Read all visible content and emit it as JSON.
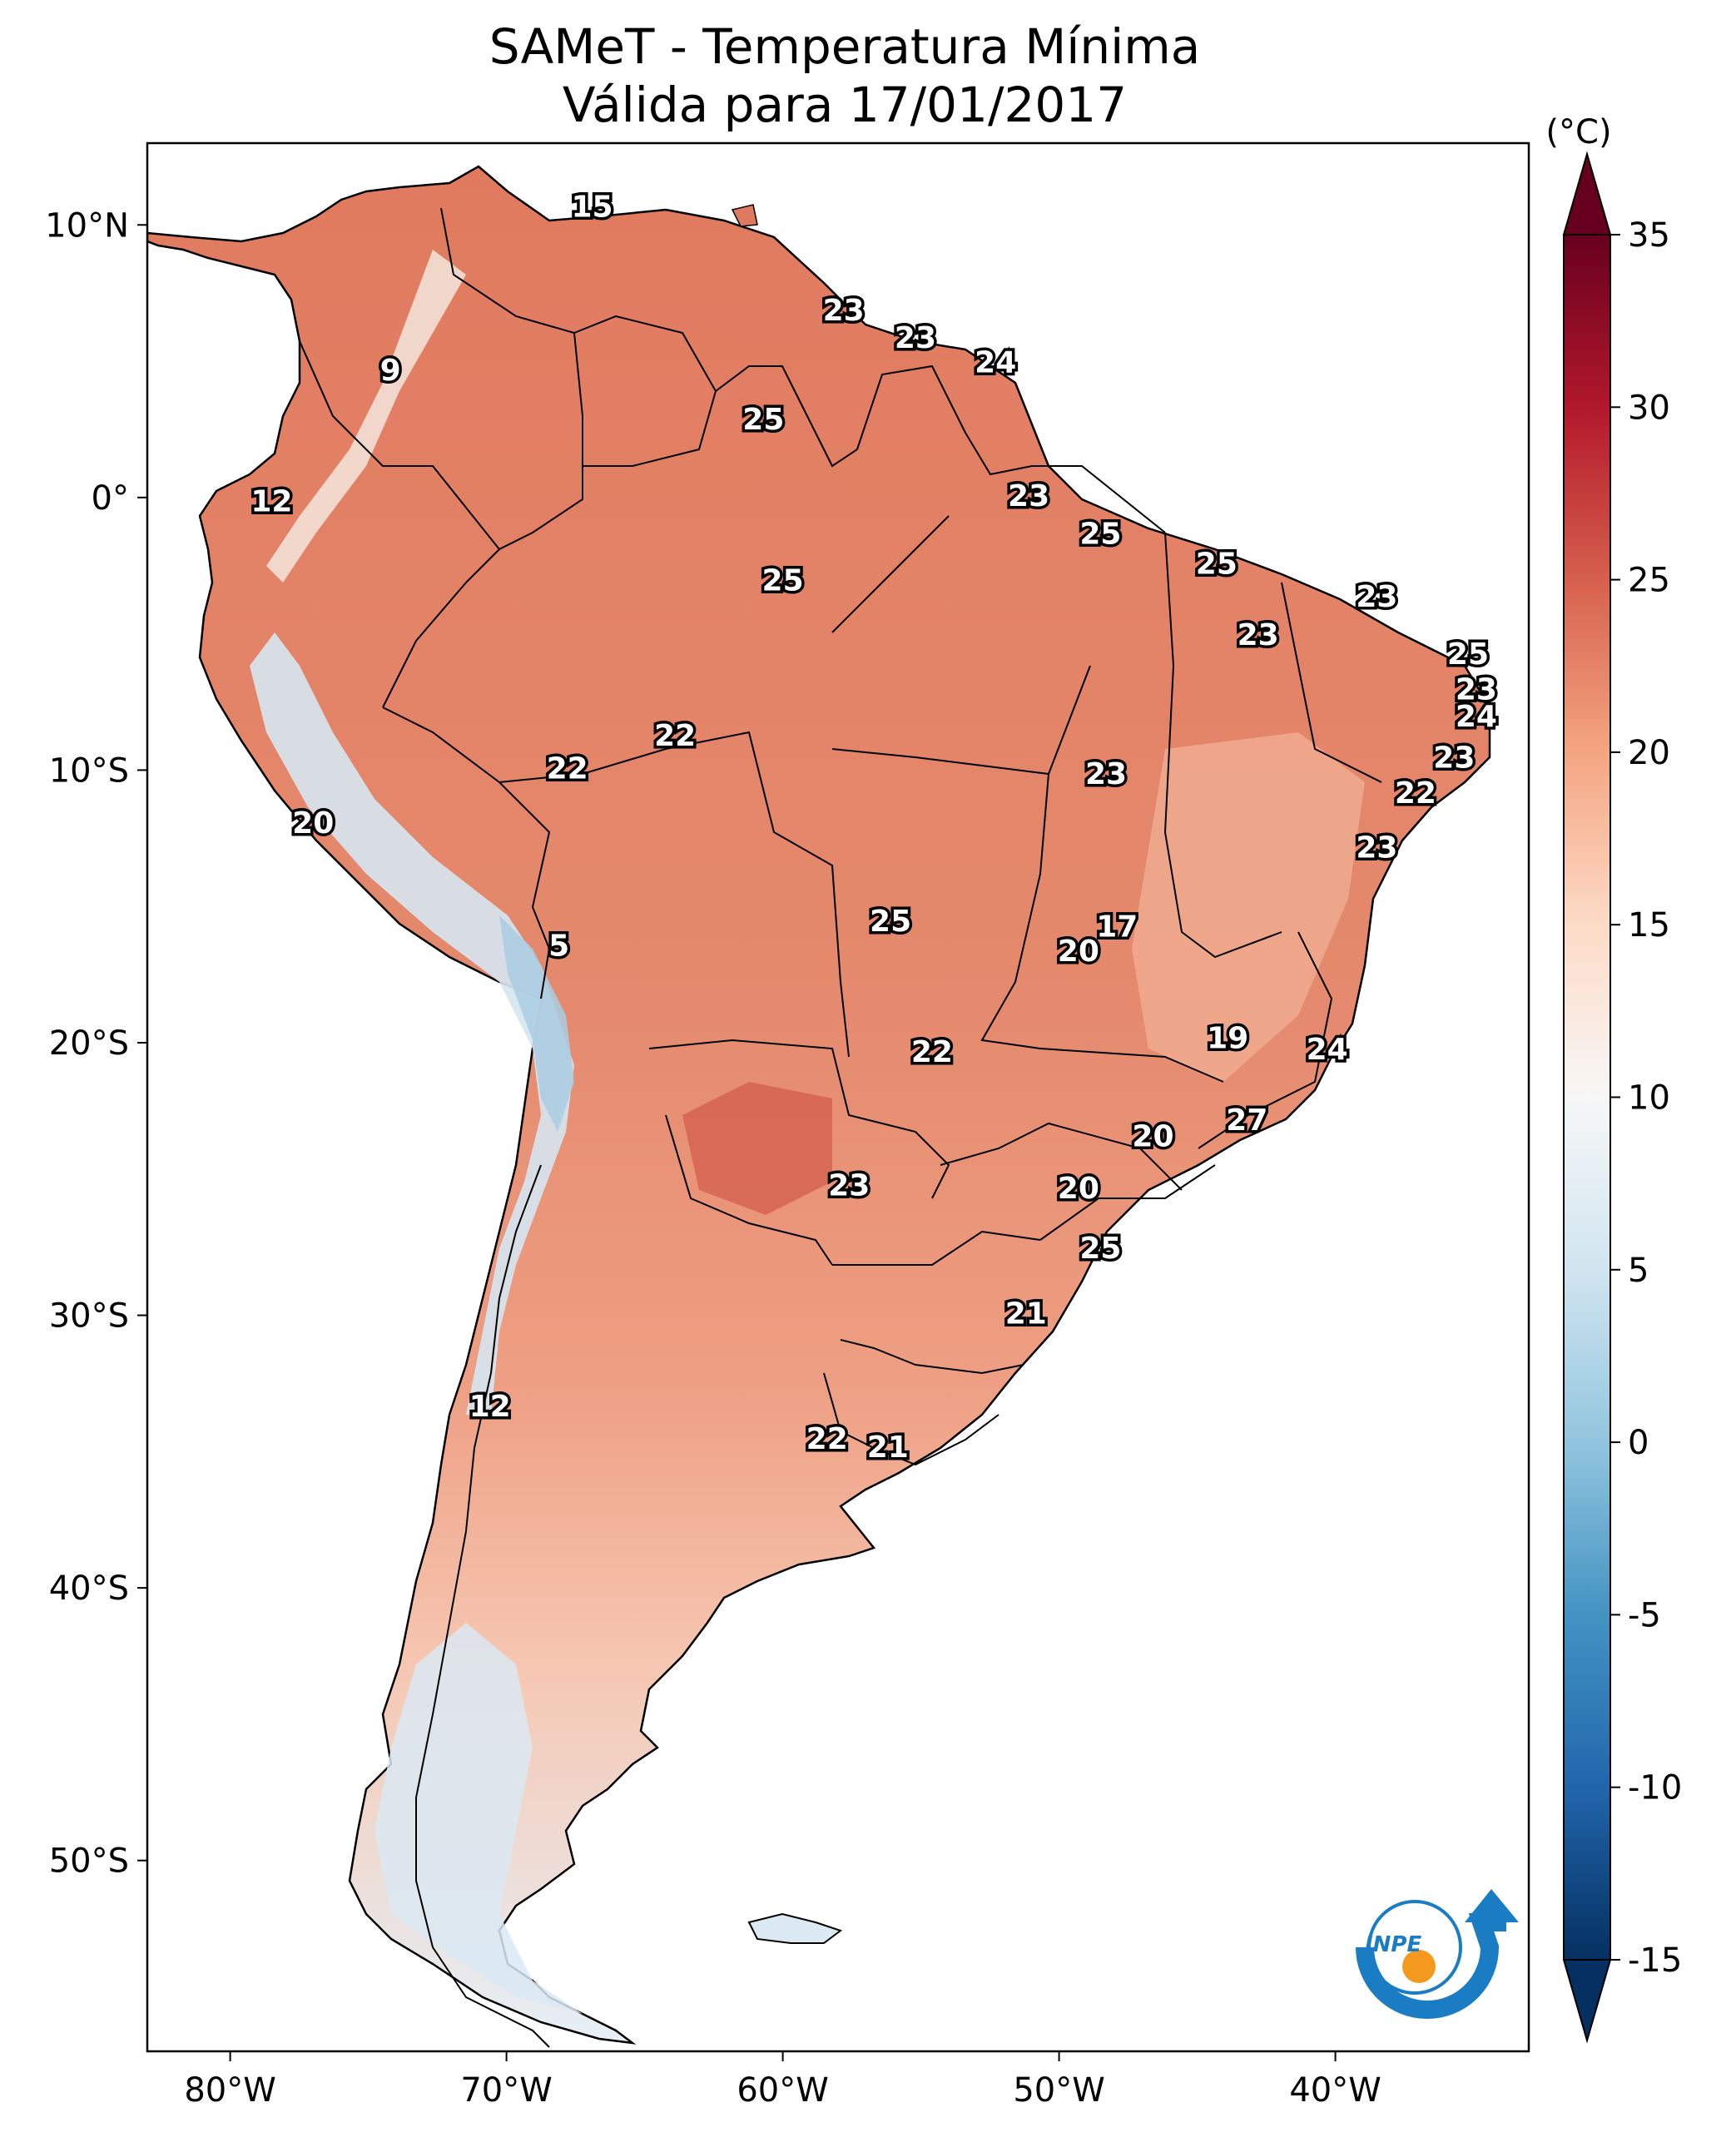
{
  "title": {
    "line1": "SAMeT - Temperatura Mínima",
    "line2": "Válida para 17/01/2017"
  },
  "colorbar": {
    "unit": "(°C)",
    "ticks": [
      "35",
      "30",
      "25",
      "20",
      "15",
      "10",
      "5",
      "0",
      "-5",
      "-10",
      "-15"
    ],
    "colors": [
      "#67001f",
      "#b2182b",
      "#d6604d",
      "#f4a582",
      "#fddbc7",
      "#f7f7f7",
      "#d1e5f0",
      "#92c5de",
      "#4393c3",
      "#2166ac",
      "#053061"
    ]
  },
  "axes": {
    "lat_ticks": [
      "10°N",
      "0°",
      "10°S",
      "20°S",
      "30°S",
      "40°S",
      "50°S"
    ],
    "lon_ticks": [
      "80°W",
      "70°W",
      "60°W",
      "50°W",
      "40°W"
    ],
    "lon_range": [
      -83,
      -33
    ],
    "lat_range": [
      -57,
      13
    ]
  },
  "logo": {
    "text": "INPE"
  },
  "chart_data": {
    "type": "heatmap",
    "title": "SAMeT - Temperatura Mínima Válida para 17/01/2017",
    "colorbar_label": "(°C)",
    "value_range": [
      -15,
      35
    ],
    "station_values": [
      {
        "lon": -66.9,
        "lat": 10.6,
        "value": "15"
      },
      {
        "lon": -74.2,
        "lat": 4.6,
        "value": "9"
      },
      {
        "lon": -78.5,
        "lat": -0.2,
        "value": "12"
      },
      {
        "lon": -57.8,
        "lat": 6.8,
        "value": "23"
      },
      {
        "lon": -55.2,
        "lat": 5.8,
        "value": "23"
      },
      {
        "lon": -52.3,
        "lat": 4.9,
        "value": "24"
      },
      {
        "lon": -60.7,
        "lat": 2.8,
        "value": "25"
      },
      {
        "lon": -51.1,
        "lat": 0.0,
        "value": "23"
      },
      {
        "lon": -48.5,
        "lat": -1.4,
        "value": "25"
      },
      {
        "lon": -44.3,
        "lat": -2.5,
        "value": "25"
      },
      {
        "lon": -60.0,
        "lat": -3.1,
        "value": "25"
      },
      {
        "lon": -38.5,
        "lat": -3.7,
        "value": "23"
      },
      {
        "lon": -42.8,
        "lat": -5.1,
        "value": "23"
      },
      {
        "lon": -35.2,
        "lat": -5.8,
        "value": "25"
      },
      {
        "lon": -34.9,
        "lat": -7.1,
        "value": "23"
      },
      {
        "lon": -34.9,
        "lat": -8.1,
        "value": "24"
      },
      {
        "lon": -63.9,
        "lat": -8.8,
        "value": "22"
      },
      {
        "lon": -67.8,
        "lat": -10.0,
        "value": "22"
      },
      {
        "lon": -48.3,
        "lat": -10.2,
        "value": "23"
      },
      {
        "lon": -35.7,
        "lat": -9.6,
        "value": "23"
      },
      {
        "lon": -37.1,
        "lat": -10.9,
        "value": "22"
      },
      {
        "lon": -77.0,
        "lat": -12.0,
        "value": "20"
      },
      {
        "lon": -38.5,
        "lat": -12.9,
        "value": "23"
      },
      {
        "lon": -56.1,
        "lat": -15.6,
        "value": "25"
      },
      {
        "lon": -47.9,
        "lat": -15.8,
        "value": "17"
      },
      {
        "lon": -49.3,
        "lat": -16.7,
        "value": "20"
      },
      {
        "lon": -68.1,
        "lat": -16.5,
        "value": "5"
      },
      {
        "lon": -43.9,
        "lat": -19.9,
        "value": "19"
      },
      {
        "lon": -40.3,
        "lat": -20.3,
        "value": "24"
      },
      {
        "lon": -54.6,
        "lat": -20.4,
        "value": "22"
      },
      {
        "lon": -43.2,
        "lat": -22.9,
        "value": "27"
      },
      {
        "lon": -46.6,
        "lat": -23.5,
        "value": "20"
      },
      {
        "lon": -57.6,
        "lat": -25.3,
        "value": "23"
      },
      {
        "lon": -49.3,
        "lat": -25.4,
        "value": "20"
      },
      {
        "lon": -48.5,
        "lat": -27.6,
        "value": "25"
      },
      {
        "lon": -51.2,
        "lat": -30.0,
        "value": "21"
      },
      {
        "lon": -70.6,
        "lat": -33.4,
        "value": "12"
      },
      {
        "lon": -58.4,
        "lat": -34.6,
        "value": "22"
      },
      {
        "lon": -56.2,
        "lat": -34.9,
        "value": "21"
      }
    ]
  }
}
